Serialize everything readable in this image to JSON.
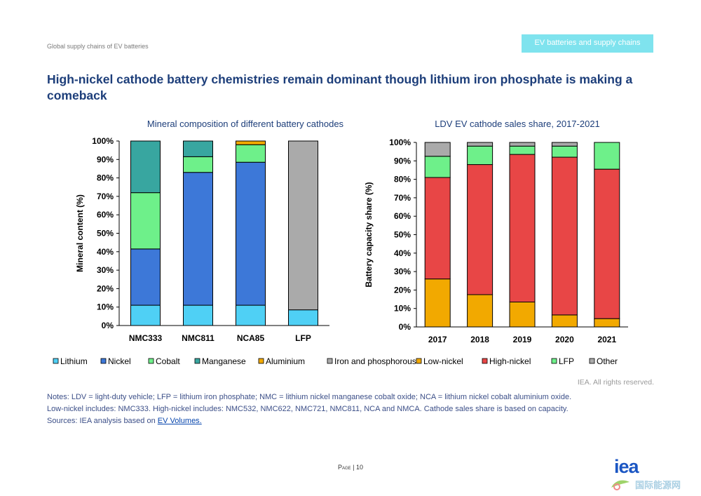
{
  "header": {
    "left_text": "Global supply chains of EV batteries",
    "tab_label": "EV batteries and supply chains"
  },
  "title": "High-nickel cathode battery chemistries remain dominant though lithium iron phosphate is making a comeback",
  "footer": {
    "rights": "IEA. All rights reserved.",
    "notes_line1": "Notes: LDV = light-duty vehicle; LFP = lithium iron phosphate; NMC = lithium nickel manganese cobalt oxide; NCA = lithium nickel cobalt aluminium oxide.",
    "notes_line2": "Low-nickel includes: NMC333. High-nickel includes: NMC532, NMC622, NMC721, NMC811, NCA and NMCA. Cathode sales share is based on capacity.",
    "sources_prefix": "Sources: IEA analysis based on ",
    "sources_link": "EV Volumes.",
    "page_word": "Page",
    "page_sep": " | ",
    "page_number": "10",
    "logo_text": "iea",
    "logo_sub": "国际能源网"
  },
  "chart_data": [
    {
      "type": "bar",
      "stacked": true,
      "title": "Mineral composition of different battery cathodes",
      "ylabel": "Mineral content (%)",
      "xlabel": "",
      "ylim": [
        0,
        100
      ],
      "yticks": [
        "0%",
        "10%",
        "20%",
        "30%",
        "40%",
        "50%",
        "60%",
        "70%",
        "80%",
        "90%",
        "100%"
      ],
      "categories": [
        "NMC333",
        "NMC811",
        "NCA85",
        "LFP"
      ],
      "series": [
        {
          "name": "Lithium",
          "color": "#4fd0f5",
          "values": [
            11,
            11,
            11,
            8.5
          ]
        },
        {
          "name": "Nickel",
          "color": "#3d78d8",
          "values": [
            30.5,
            72,
            77.5,
            0
          ]
        },
        {
          "name": "Cobalt",
          "color": "#6ef08a",
          "values": [
            30.5,
            8.5,
            9.5,
            0
          ]
        },
        {
          "name": "Manganese",
          "color": "#38a6a0",
          "values": [
            28,
            8.5,
            0,
            0
          ]
        },
        {
          "name": "Aluminium",
          "color": "#f2a900",
          "values": [
            0,
            0,
            2,
            0
          ]
        },
        {
          "name": "Iron and phosphorous",
          "color": "#aaaaaa",
          "values": [
            0,
            0,
            0,
            91.5
          ]
        }
      ],
      "grid": false,
      "legend_position": "bottom"
    },
    {
      "type": "bar",
      "stacked": true,
      "title": "LDV EV cathode sales share, 2017-2021",
      "ylabel": "Battery capacity share (%)",
      "xlabel": "",
      "ylim": [
        0,
        100
      ],
      "yticks": [
        "0%",
        "10%",
        "20%",
        "30%",
        "40%",
        "50%",
        "60%",
        "70%",
        "80%",
        "90%",
        "100%"
      ],
      "categories": [
        "2017",
        "2018",
        "2019",
        "2020",
        "2021"
      ],
      "series": [
        {
          "name": "Low-nickel",
          "color": "#f2a900",
          "values": [
            26,
            17.5,
            13.5,
            6.5,
            4.5
          ]
        },
        {
          "name": "High-nickel",
          "color": "#e84646",
          "values": [
            55,
            70.5,
            80,
            85.5,
            81
          ]
        },
        {
          "name": "LFP",
          "color": "#6ef08a",
          "values": [
            11.5,
            10,
            4.5,
            6,
            14.5
          ]
        },
        {
          "name": "Other",
          "color": "#aaaaaa",
          "values": [
            7.5,
            2,
            2,
            2,
            0
          ]
        }
      ],
      "grid": false,
      "legend_position": "bottom"
    }
  ]
}
